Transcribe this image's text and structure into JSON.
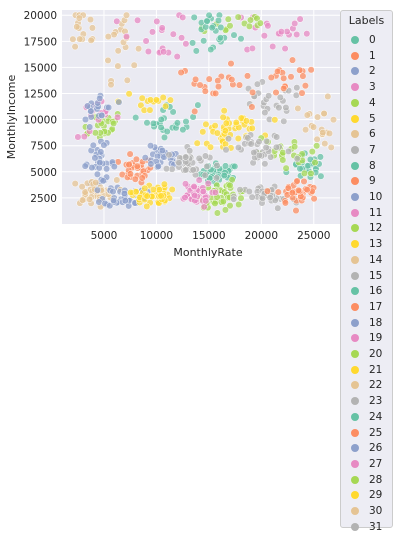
{
  "chart_data": {
    "type": "scatter",
    "title": "",
    "xlabel": "MonthlyRate",
    "ylabel": "MonthlyIncome",
    "xlim": [
      1000,
      27500
    ],
    "ylim": [
      0,
      20500
    ],
    "xticks": [
      5000,
      10000,
      15000,
      20000,
      25000
    ],
    "yticks": [
      2500,
      5000,
      7500,
      10000,
      12500,
      15000,
      17500,
      20000
    ],
    "grid": true,
    "legend": {
      "title": "Labels",
      "placement": "right"
    },
    "palette": [
      "#66c2a5",
      "#fc8d62",
      "#8da0cb",
      "#e78ac3",
      "#a6d854",
      "#ffd92f",
      "#e5c494",
      "#b3b3b3"
    ],
    "series": [
      {
        "name": "0",
        "center": [
          16000,
          4800
        ],
        "spread": [
          900,
          500
        ],
        "count": 45
      },
      {
        "name": "1",
        "center": [
          8000,
          5200
        ],
        "spread": [
          800,
          600
        ],
        "count": 30
      },
      {
        "name": "2",
        "center": [
          10500,
          6200
        ],
        "spread": [
          900,
          600
        ],
        "count": 30
      },
      {
        "name": "3",
        "center": [
          21500,
          18500
        ],
        "spread": [
          1500,
          1200
        ],
        "count": 20
      },
      {
        "name": "4",
        "center": [
          4500,
          9500
        ],
        "spread": [
          1200,
          700
        ],
        "count": 25
      },
      {
        "name": "5",
        "center": [
          16500,
          8500
        ],
        "spread": [
          1200,
          900
        ],
        "count": 25
      },
      {
        "name": "6",
        "center": [
          6500,
          17500
        ],
        "spread": [
          800,
          1800
        ],
        "count": 20
      },
      {
        "name": "7",
        "center": [
          13000,
          5800
        ],
        "spread": [
          1000,
          700
        ],
        "count": 40
      },
      {
        "name": "8",
        "center": [
          11500,
          10000
        ],
        "spread": [
          1200,
          800
        ],
        "count": 25
      },
      {
        "name": "9",
        "center": [
          15500,
          13500
        ],
        "spread": [
          1800,
          800
        ],
        "count": 20
      },
      {
        "name": "10",
        "center": [
          4500,
          5800
        ],
        "spread": [
          800,
          900
        ],
        "count": 35
      },
      {
        "name": "11",
        "center": [
          4500,
          10000
        ],
        "spread": [
          1000,
          900
        ],
        "count": 15
      },
      {
        "name": "12",
        "center": [
          17500,
          19200
        ],
        "spread": [
          2000,
          600
        ],
        "count": 15
      },
      {
        "name": "13",
        "center": [
          9500,
          11800
        ],
        "spread": [
          1500,
          800
        ],
        "count": 15
      },
      {
        "name": "14",
        "center": [
          3000,
          18500
        ],
        "spread": [
          800,
          1500
        ],
        "count": 15
      },
      {
        "name": "15",
        "center": [
          20500,
          11500
        ],
        "spread": [
          1800,
          1000
        ],
        "count": 25
      },
      {
        "name": "16",
        "center": [
          24500,
          5500
        ],
        "spread": [
          800,
          600
        ],
        "count": 25
      },
      {
        "name": "17",
        "center": [
          22500,
          13500
        ],
        "spread": [
          1500,
          900
        ],
        "count": 20
      },
      {
        "name": "18",
        "center": [
          4500,
          11000
        ],
        "spread": [
          800,
          1000
        ],
        "count": 20
      },
      {
        "name": "19",
        "center": [
          10500,
          18200
        ],
        "spread": [
          1500,
          1200
        ],
        "count": 20
      },
      {
        "name": "20",
        "center": [
          16500,
          2800
        ],
        "spread": [
          1200,
          600
        ],
        "count": 40
      },
      {
        "name": "21",
        "center": [
          17500,
          9500
        ],
        "spread": [
          1200,
          600
        ],
        "count": 20
      },
      {
        "name": "22",
        "center": [
          4000,
          3000
        ],
        "spread": [
          1100,
          600
        ],
        "count": 40
      },
      {
        "name": "23",
        "center": [
          20500,
          2600
        ],
        "spread": [
          1500,
          600
        ],
        "count": 40
      },
      {
        "name": "24",
        "center": [
          15500,
          18500
        ],
        "spread": [
          1200,
          1200
        ],
        "count": 25
      },
      {
        "name": "25",
        "center": [
          23500,
          3000
        ],
        "spread": [
          1000,
          600
        ],
        "count": 40
      },
      {
        "name": "26",
        "center": [
          7000,
          2700
        ],
        "spread": [
          1000,
          500
        ],
        "count": 40
      },
      {
        "name": "27",
        "center": [
          13500,
          2800
        ],
        "spread": [
          900,
          600
        ],
        "count": 40
      },
      {
        "name": "28",
        "center": [
          22500,
          6500
        ],
        "spread": [
          1500,
          900
        ],
        "count": 25
      },
      {
        "name": "29",
        "center": [
          9500,
          2800
        ],
        "spread": [
          900,
          500
        ],
        "count": 45
      },
      {
        "name": "30",
        "center": [
          25500,
          9000
        ],
        "spread": [
          1000,
          1500
        ],
        "count": 20
      },
      {
        "name": "31",
        "center": [
          20000,
          7000
        ],
        "spread": [
          1500,
          800
        ],
        "count": 35
      }
    ]
  }
}
